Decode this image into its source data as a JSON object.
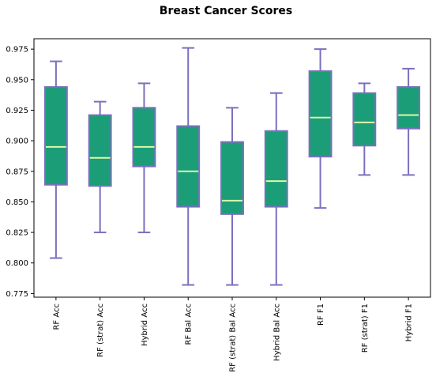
{
  "chart_data": {
    "type": "box",
    "title": "Breast Cancer Scores",
    "xlabel": "",
    "ylabel": "",
    "ylim": [
      0.772,
      0.9835
    ],
    "yticks": [
      "0.775",
      "0.800",
      "0.825",
      "0.850",
      "0.875",
      "0.900",
      "0.925",
      "0.950",
      "0.975"
    ],
    "grid": false,
    "colors": {
      "box_fill": "#1b9e77",
      "box_edge": "#7b6fbf",
      "whisker": "#7b6fbf",
      "median": "#dff7a8"
    },
    "categories": [
      "RF Acc",
      "RF (strat) Acc",
      "Hybrid Acc",
      "RF Bal Acc",
      "RF (strat) Bal Acc",
      "Hybrid Bal Acc",
      "RF F1",
      "RF (strat) F1",
      "Hybrid F1"
    ],
    "boxes": [
      {
        "min": 0.804,
        "q1": 0.864,
        "median": 0.895,
        "q3": 0.944,
        "max": 0.965
      },
      {
        "min": 0.825,
        "q1": 0.863,
        "median": 0.886,
        "q3": 0.921,
        "max": 0.932
      },
      {
        "min": 0.825,
        "q1": 0.879,
        "median": 0.895,
        "q3": 0.927,
        "max": 0.947
      },
      {
        "min": 0.782,
        "q1": 0.846,
        "median": 0.875,
        "q3": 0.912,
        "max": 0.976
      },
      {
        "min": 0.782,
        "q1": 0.84,
        "median": 0.851,
        "q3": 0.899,
        "max": 0.927
      },
      {
        "min": 0.782,
        "q1": 0.846,
        "median": 0.867,
        "q3": 0.908,
        "max": 0.939
      },
      {
        "min": 0.845,
        "q1": 0.887,
        "median": 0.919,
        "q3": 0.957,
        "max": 0.975
      },
      {
        "min": 0.872,
        "q1": 0.896,
        "median": 0.915,
        "q3": 0.939,
        "max": 0.947
      },
      {
        "min": 0.872,
        "q1": 0.91,
        "median": 0.921,
        "q3": 0.944,
        "max": 0.959
      }
    ]
  }
}
